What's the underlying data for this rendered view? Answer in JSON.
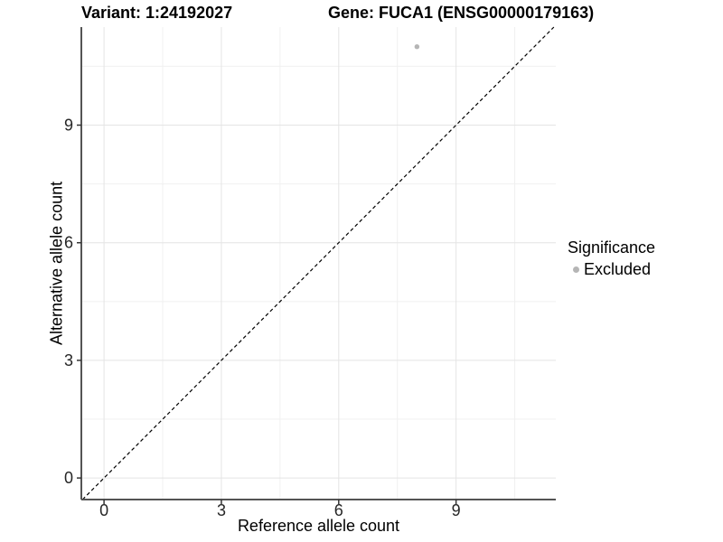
{
  "chart_data": {
    "type": "scatter",
    "title_left": "Variant: 1:24192027",
    "title_right": "Gene: FUCA1 (ENSG00000179163)",
    "xlabel": "Reference allele count",
    "ylabel": "Alternative allele count",
    "xlim": [
      -0.58,
      11.55
    ],
    "ylim": [
      -0.55,
      11.5
    ],
    "x_major_ticks": [
      0,
      3,
      6,
      9
    ],
    "y_major_ticks": [
      0,
      3,
      6,
      9
    ],
    "x_minor_ticks": [
      1.5,
      4.5,
      7.5,
      10.5
    ],
    "y_minor_ticks": [
      1.5,
      4.5,
      7.5,
      10.5
    ],
    "grid": true,
    "identity_line": {
      "slope": 1,
      "intercept": 0,
      "style": "dashed",
      "color": "#000000"
    },
    "points": [
      {
        "x": 8,
        "y": 11,
        "significance": "Excluded"
      }
    ],
    "legend": {
      "title": "Significance",
      "position": "right",
      "items": [
        {
          "label": "Excluded",
          "color": "#b5b5b5"
        }
      ]
    },
    "colors": {
      "background": "#ffffff",
      "axis_line": "#545454",
      "tick_mark": "#333333",
      "grid_major": "#e4e4e4",
      "grid_minor": "#f0f0f0",
      "tick_text": "#262626",
      "title_text": "#000000"
    }
  }
}
